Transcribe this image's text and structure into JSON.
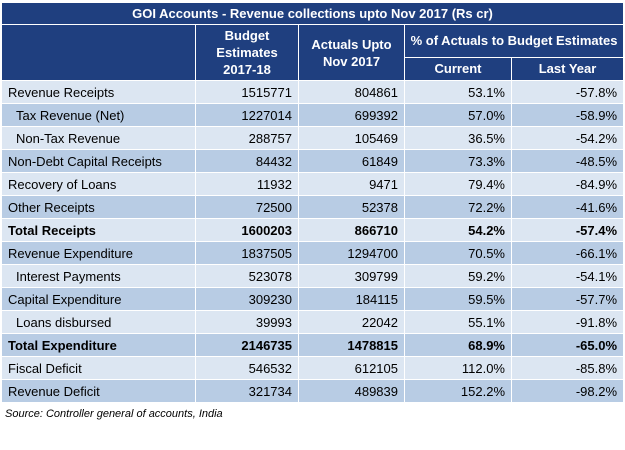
{
  "title": "GOI Accounts - Revenue collections upto Nov 2017 (Rs cr)",
  "headers": {
    "budget": "Budget Estimates 2017-18",
    "actuals": "Actuals Upto Nov 2017",
    "pct": "% of Actuals to Budget Estimates",
    "current": "Current",
    "last_year": "Last Year"
  },
  "rows": [
    {
      "label": "Revenue Receipts",
      "budget": "1515771",
      "actuals": "804861",
      "current": "53.1%",
      "last_year": "-57.8%"
    },
    {
      "label": "Tax Revenue (Net)",
      "budget": "1227014",
      "actuals": "699392",
      "current": "57.0%",
      "last_year": "-58.9%"
    },
    {
      "label": "Non-Tax Revenue",
      "budget": "288757",
      "actuals": "105469",
      "current": "36.5%",
      "last_year": "-54.2%"
    },
    {
      "label": "Non-Debt Capital Receipts",
      "budget": "84432",
      "actuals": "61849",
      "current": "73.3%",
      "last_year": "-48.5%"
    },
    {
      "label": "Recovery of Loans",
      "budget": "11932",
      "actuals": "9471",
      "current": "79.4%",
      "last_year": "-84.9%"
    },
    {
      "label": "Other Receipts",
      "budget": "72500",
      "actuals": "52378",
      "current": "72.2%",
      "last_year": "-41.6%"
    },
    {
      "label": "Total Receipts",
      "budget": "1600203",
      "actuals": "866710",
      "current": "54.2%",
      "last_year": "-57.4%"
    },
    {
      "label": "Revenue Expenditure",
      "budget": "1837505",
      "actuals": "1294700",
      "current": "70.5%",
      "last_year": "-66.1%"
    },
    {
      "label": "Interest Payments",
      "budget": "523078",
      "actuals": "309799",
      "current": "59.2%",
      "last_year": "-54.1%"
    },
    {
      "label": "Capital Expenditure",
      "budget": "309230",
      "actuals": "184115",
      "current": "59.5%",
      "last_year": "-57.7%"
    },
    {
      "label": "Loans disbursed",
      "budget": "39993",
      "actuals": "22042",
      "current": "55.1%",
      "last_year": "-91.8%"
    },
    {
      "label": "Total Expenditure",
      "budget": "2146735",
      "actuals": "1478815",
      "current": "68.9%",
      "last_year": "-65.0%"
    },
    {
      "label": "Fiscal Deficit",
      "budget": "546532",
      "actuals": "612105",
      "current": "112.0%",
      "last_year": "-85.8%"
    },
    {
      "label": "Revenue Deficit",
      "budget": "321734",
      "actuals": "489839",
      "current": "152.2%",
      "last_year": "-98.2%"
    }
  ],
  "source": "Source: Controller general of accounts, India",
  "colors": {
    "header_bg": "#1f3f7f",
    "row_light": "#dce6f2",
    "row_dark": "#b8cce4"
  }
}
